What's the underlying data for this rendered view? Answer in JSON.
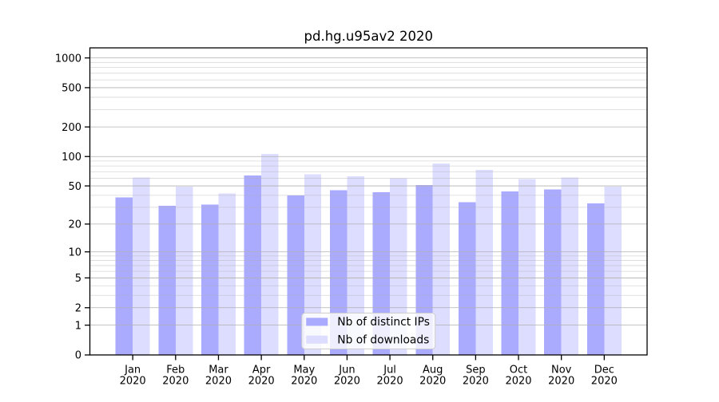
{
  "title": "pd.hg.u95av2 2020",
  "chart_data": {
    "type": "bar",
    "title": "pd.hg.u95av2 2020",
    "categories": [
      "Jan 2020",
      "Feb 2020",
      "Mar 2020",
      "Apr 2020",
      "May 2020",
      "Jun 2020",
      "Jul 2020",
      "Aug 2020",
      "Sep 2020",
      "Oct 2020",
      "Nov 2020",
      "Dec 2020"
    ],
    "x_tick_labels_line1": [
      "Jan",
      "Feb",
      "Mar",
      "Apr",
      "May",
      "Jun",
      "Jul",
      "Aug",
      "Sep",
      "Oct",
      "Nov",
      "Dec"
    ],
    "x_tick_labels_line2": [
      "2020",
      "2020",
      "2020",
      "2020",
      "2020",
      "2020",
      "2020",
      "2020",
      "2020",
      "2020",
      "2020",
      "2020"
    ],
    "series": [
      {
        "name": "Nb of distinct IPs",
        "color": "#aaaaff",
        "values": [
          38,
          31,
          32,
          64,
          40,
          45,
          43,
          51,
          34,
          44,
          46,
          33
        ]
      },
      {
        "name": "Nb of downloads",
        "color": "#ddddff",
        "values": [
          61,
          49,
          42,
          106,
          66,
          63,
          60,
          85,
          73,
          59,
          61,
          49
        ]
      }
    ],
    "yscale": "log10(1+y)",
    "ylim": [
      0,
      1264
    ],
    "y_major_ticks": [
      0,
      1,
      2,
      5,
      10,
      20,
      50,
      100,
      200,
      500,
      1000
    ],
    "y_minor_ticks": [
      3,
      4,
      6,
      7,
      8,
      9,
      30,
      40,
      60,
      70,
      80,
      90,
      300,
      400,
      600,
      700,
      800,
      900
    ],
    "grid": true,
    "legend_position": "lower center",
    "xlabel": "",
    "ylabel": ""
  },
  "legend": {
    "items": [
      {
        "label": "Nb of distinct IPs",
        "color": "#aaaaff"
      },
      {
        "label": "Nb of downloads",
        "color": "#ddddff"
      }
    ]
  },
  "colors": {
    "distinct_ips": "#aaaaff",
    "downloads": "#ddddff",
    "spine": "#000000",
    "grid_major": "#b0b0b0",
    "grid_minor": "rgba(176,176,176,0.5)",
    "legend_bg": "rgba(255,255,255,0.8)",
    "legend_border": "#cccccc",
    "text": "#000000"
  }
}
